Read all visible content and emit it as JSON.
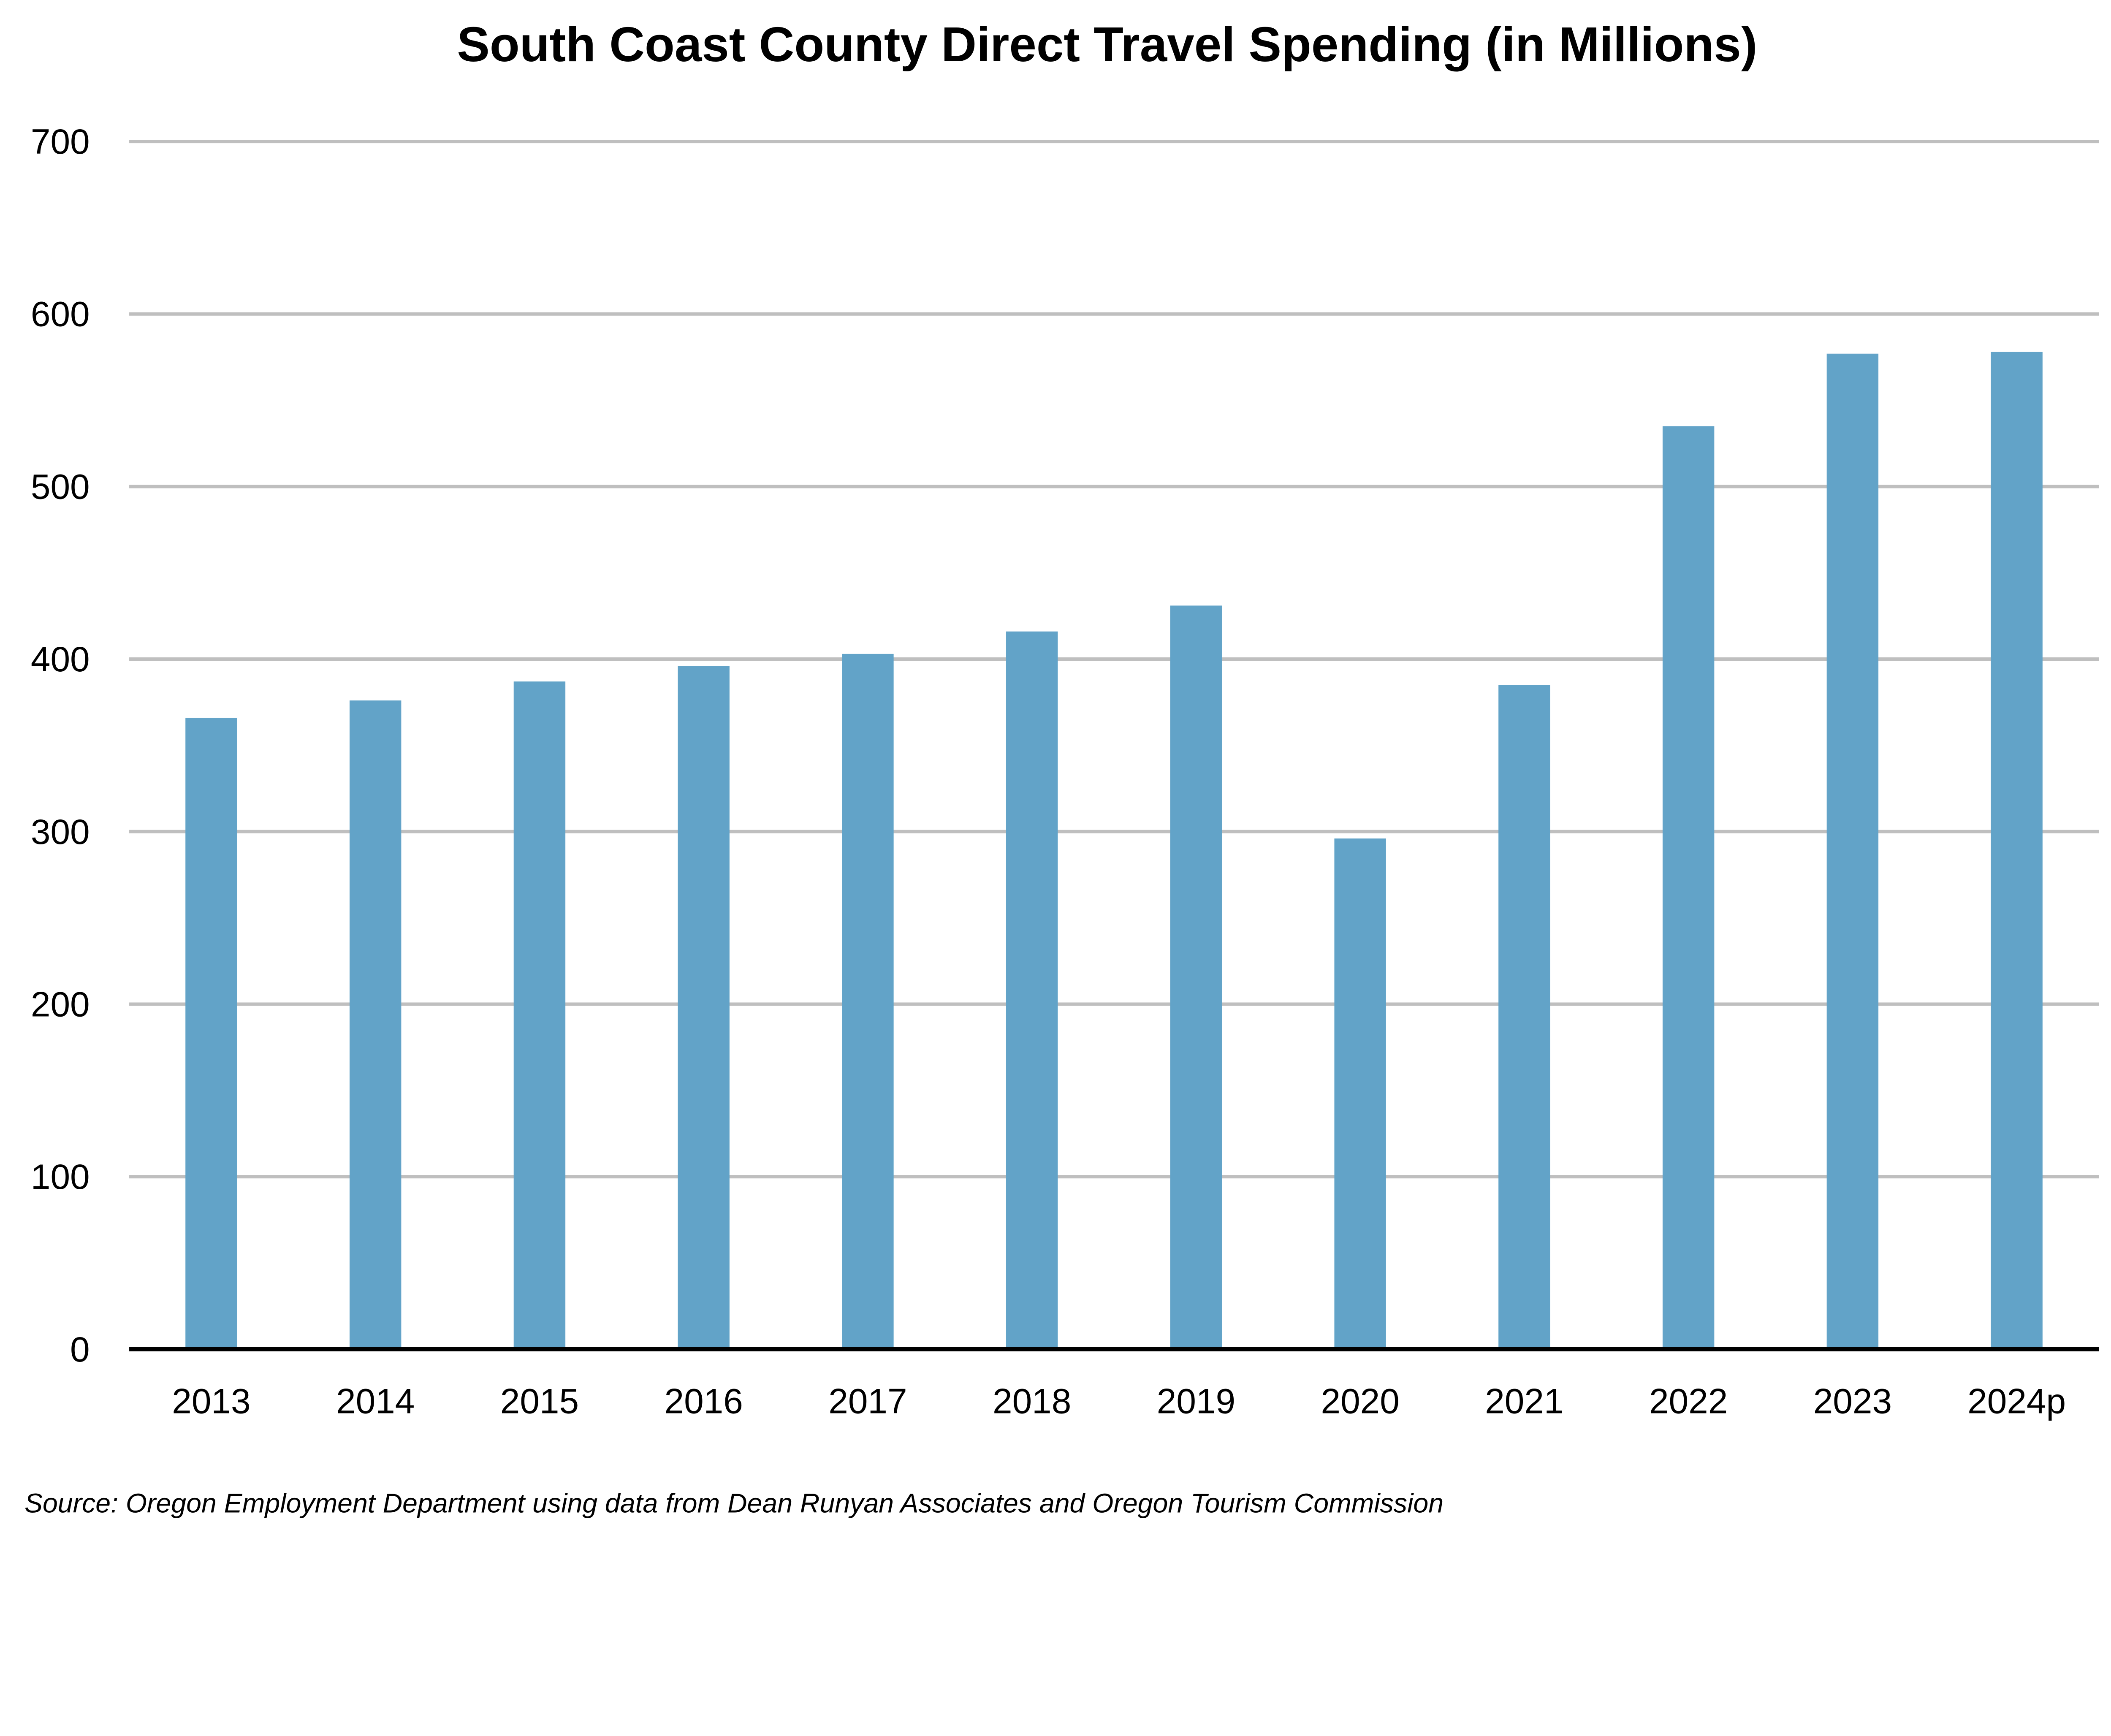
{
  "chart_data": {
    "type": "bar",
    "title": "South Coast County Direct Travel Spending (in Millions)",
    "xlabel": "",
    "ylabel": "",
    "categories": [
      "2013",
      "2014",
      "2015",
      "2016",
      "2017",
      "2018",
      "2019",
      "2020",
      "2021",
      "2022",
      "2023",
      "2024p"
    ],
    "values": [
      366,
      376,
      387,
      396,
      403,
      416,
      431,
      296,
      385,
      535,
      577,
      578
    ],
    "ylim": [
      0,
      700
    ],
    "yticks": [
      0,
      100,
      200,
      300,
      400,
      500,
      600,
      700
    ],
    "grid": true,
    "legend": "none",
    "colors": {
      "bar": "#62a3c8",
      "grid": "#bfbfbf",
      "axis": "#000000"
    },
    "source": "Source: Oregon Employment Department using data from Dean Runyan Associates and Oregon Tourism Commission"
  }
}
